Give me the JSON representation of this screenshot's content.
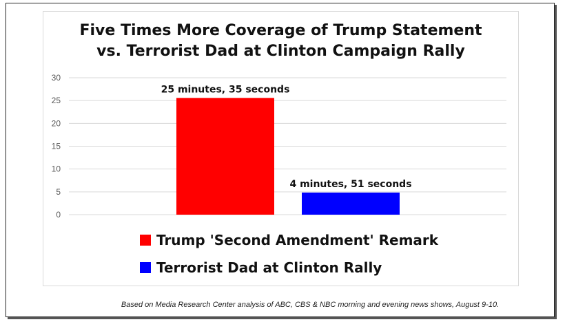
{
  "chart_data": {
    "type": "bar",
    "title": "Five Times More Coverage of Trump Statement vs. Terrorist Dad at Clinton Campaign Rally",
    "title_lines": [
      "Five Times More Coverage of Trump Statement",
      "vs. Terrorist Dad at Clinton Campaign Rally"
    ],
    "categories": [
      "Trump 'Second Amendment' Remark",
      "Terrorist Dad at Clinton Rally"
    ],
    "values": [
      25.58,
      4.85
    ],
    "data_labels": [
      "25 minutes, 35 seconds",
      "4 minutes, 51 seconds"
    ],
    "colors": [
      "#ff0000",
      "#0000ff"
    ],
    "ylim": [
      0,
      30
    ],
    "yticks": [
      0,
      5,
      10,
      15,
      20,
      25,
      30
    ],
    "grid": true,
    "legend_position": "bottom",
    "xlabel": "",
    "ylabel": ""
  },
  "footnote": "Based on Media Research Center analysis of ABC, CBS & NBC morning and evening news shows, August 9-10."
}
